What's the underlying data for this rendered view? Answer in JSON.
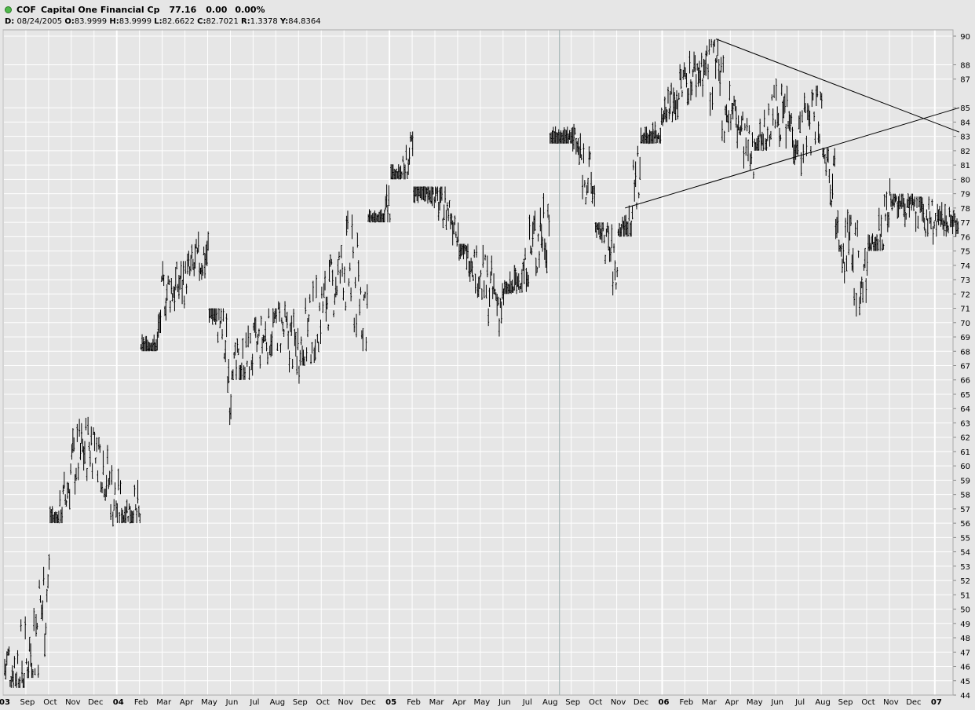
{
  "header": {
    "status_icon": "green-dot-icon",
    "symbol": "COF",
    "company": "Capital One Financial Cp",
    "last": "77.16",
    "change": "0.00",
    "change_pct": "0.00%",
    "bar_info": [
      {
        "key": "D:",
        "value": "08/24/2005"
      },
      {
        "key": "O:",
        "value": "83.9999"
      },
      {
        "key": "H:",
        "value": "83.9999"
      },
      {
        "key": "L:",
        "value": "82.6622"
      },
      {
        "key": "C:",
        "value": "82.7021"
      },
      {
        "key": "R:",
        "value": "1.3378"
      },
      {
        "key": "Y:",
        "value": "84.8364"
      }
    ]
  },
  "colors": {
    "background": "#e6e6e6",
    "grid": "#ffffff",
    "bars": "#000000",
    "trendlines": "#000000",
    "cursor": "#9ab0b0"
  },
  "chart_data": {
    "type": "ohlc-bar",
    "title": "COF Capital One Financial Cp",
    "y_axis_side": "right",
    "ylim": [
      44,
      90
    ],
    "yticks": [
      44,
      45,
      46,
      47,
      48,
      49,
      50,
      51,
      52,
      53,
      54,
      55,
      56,
      57,
      58,
      59,
      60,
      61,
      62,
      63,
      64,
      65,
      66,
      67,
      68,
      69,
      70,
      71,
      72,
      73,
      74,
      75,
      76,
      77,
      78,
      79,
      80,
      81,
      82,
      83,
      84,
      85,
      87,
      88,
      90
    ],
    "grid": true,
    "x_axis": {
      "labels": [
        {
          "text": "03",
          "index": 0,
          "year": true
        },
        {
          "text": "Sep",
          "index": 1
        },
        {
          "text": "Oct",
          "index": 2
        },
        {
          "text": "Nov",
          "index": 3
        },
        {
          "text": "Dec",
          "index": 4
        },
        {
          "text": "04",
          "index": 5,
          "year": true
        },
        {
          "text": "Feb",
          "index": 6
        },
        {
          "text": "Mar",
          "index": 7
        },
        {
          "text": "Apr",
          "index": 8
        },
        {
          "text": "May",
          "index": 9
        },
        {
          "text": "Jun",
          "index": 10
        },
        {
          "text": "Jul",
          "index": 11
        },
        {
          "text": "Aug",
          "index": 12
        },
        {
          "text": "Sep",
          "index": 13
        },
        {
          "text": "Oct",
          "index": 14
        },
        {
          "text": "Nov",
          "index": 15
        },
        {
          "text": "Dec",
          "index": 16
        },
        {
          "text": "05",
          "index": 17,
          "year": true
        },
        {
          "text": "Feb",
          "index": 18
        },
        {
          "text": "Mar",
          "index": 19
        },
        {
          "text": "Apr",
          "index": 20
        },
        {
          "text": "May",
          "index": 21
        },
        {
          "text": "Jun",
          "index": 22
        },
        {
          "text": "Jul",
          "index": 23
        },
        {
          "text": "Aug",
          "index": 24
        },
        {
          "text": "Sep",
          "index": 25
        },
        {
          "text": "Oct",
          "index": 26
        },
        {
          "text": "Nov",
          "index": 27
        },
        {
          "text": "Dec",
          "index": 28
        },
        {
          "text": "06",
          "index": 29,
          "year": true
        },
        {
          "text": "Feb",
          "index": 30
        },
        {
          "text": "Mar",
          "index": 31
        },
        {
          "text": "Apr",
          "index": 32
        },
        {
          "text": "May",
          "index": 33
        },
        {
          "text": "Jun",
          "index": 34
        },
        {
          "text": "Jul",
          "index": 35
        },
        {
          "text": "Aug",
          "index": 36
        },
        {
          "text": "Sep",
          "index": 37
        },
        {
          "text": "Oct",
          "index": 38
        },
        {
          "text": "Nov",
          "index": 39
        },
        {
          "text": "Dec",
          "index": 40
        },
        {
          "text": "07",
          "index": 41,
          "year": true
        }
      ]
    },
    "series": [
      {
        "kind": "monthly-close",
        "months": [
          "Aug 03",
          "Sep 03",
          "Oct 03",
          "Nov 03",
          "Dec 03",
          "Jan 04",
          "Feb 04",
          "Mar 04",
          "Apr 04",
          "May 04",
          "Jun 04",
          "Jul 04",
          "Aug 04",
          "Sep 04",
          "Oct 04",
          "Nov 04",
          "Dec 04",
          "Jan 05",
          "Feb 05",
          "Mar 05",
          "Apr 05",
          "May 05",
          "Jun 05",
          "Jul 05",
          "Aug 05",
          "Sep 05",
          "Oct 05",
          "Nov 05",
          "Dec 05",
          "Jan 06",
          "Feb 06",
          "Mar 06",
          "Apr 06",
          "May 06",
          "Jun 06",
          "Jul 06",
          "Aug 06",
          "Sep 06",
          "Oct 06",
          "Nov 06",
          "Dec 06",
          "Jan 07"
        ],
        "values": [
          46,
          52,
          60,
          62,
          57,
          56,
          72,
          73,
          75,
          66,
          68,
          70,
          68,
          71,
          74,
          71,
          78,
          82,
          79,
          77,
          73,
          71,
          74,
          78,
          83,
          79,
          73,
          81,
          84,
          87,
          88,
          85,
          81,
          85,
          83,
          85,
          76,
          72,
          79,
          78,
          77,
          77
        ],
        "low": [
          44.5,
          45.2,
          56,
          57,
          55,
          56,
          68,
          69,
          72,
          61,
          66,
          65,
          65.2,
          67,
          68,
          68,
          77,
          80,
          76.5,
          74.5,
          71,
          69,
          72,
          72.5,
          82.5,
          77,
          71,
          76,
          82.5,
          84,
          85,
          80,
          80,
          82,
          81,
          80,
          72,
          69.3,
          75,
          76,
          74,
          76
        ],
        "high": [
          55,
          58.5,
          63,
          64.2,
          62,
          63.5,
          74.3,
          74.3,
          77.5,
          71,
          72.2,
          71,
          71.5,
          75,
          75.5,
          80.5,
          84.5,
          84.5,
          79.5,
          79.5,
          75.5,
          75.6,
          75.6,
          84,
          86,
          84,
          77,
          84.5,
          86,
          89,
          89.8,
          89.8,
          86.5,
          87.5,
          87.2,
          87.2,
          82.2,
          79,
          82.8,
          79,
          78.8,
          78.5
        ]
      }
    ],
    "annotations": [
      {
        "type": "trendline",
        "from": {
          "x": "Mar 06",
          "y": 89.8
        },
        "to": {
          "x": "end",
          "y": 83.3
        }
      },
      {
        "type": "trendline",
        "from": {
          "x": "Nov 05",
          "y": 78
        },
        "to": {
          "x": "end",
          "y": 85
        }
      }
    ]
  }
}
